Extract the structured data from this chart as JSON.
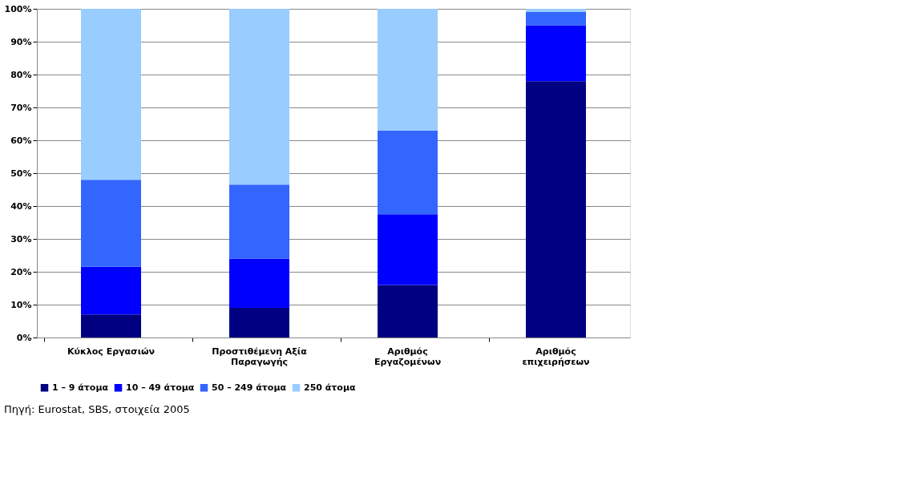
{
  "chart_data": {
    "type": "bar",
    "stacked": true,
    "categories": [
      "Κύκλος Εργασιών",
      "Προστιθέμενη Αξία\nΠαραγωγής",
      "Αριθμός\nΕργαζομένων",
      "Αριθμός\nεπιχειρήσεων"
    ],
    "series": [
      {
        "name": "1 – 9 άτομα",
        "color": "#000080",
        "values": [
          7,
          9,
          16,
          78
        ]
      },
      {
        "name": "10 – 49 άτομα",
        "color": "#0000ff",
        "values": [
          14.5,
          15,
          21.5,
          17
        ]
      },
      {
        "name": "50 – 249 άτομα",
        "color": "#3366ff",
        "values": [
          26.5,
          22.5,
          25.5,
          4
        ]
      },
      {
        "name": "250 άτομα",
        "color": "#99ccff",
        "values": [
          52,
          53.5,
          37,
          1
        ]
      }
    ],
    "ylim": [
      0,
      100
    ],
    "yticks": [
      {
        "value": 0,
        "label": "0%"
      },
      {
        "value": 10,
        "label": "10%"
      },
      {
        "value": 20,
        "label": "20%"
      },
      {
        "value": 30,
        "label": "30%"
      },
      {
        "value": 40,
        "label": "40%"
      },
      {
        "value": 50,
        "label": "50%"
      },
      {
        "value": 60,
        "label": "60%"
      },
      {
        "value": 70,
        "label": "70%"
      },
      {
        "value": 80,
        "label": "80%"
      },
      {
        "value": 90,
        "label": "90%"
      },
      {
        "value": 100,
        "label": "100%"
      }
    ],
    "grid": "y",
    "legend": "bottom",
    "annotations": [
      "Πηγή: Eurostat, SBS, στοιχεία 2005"
    ]
  }
}
